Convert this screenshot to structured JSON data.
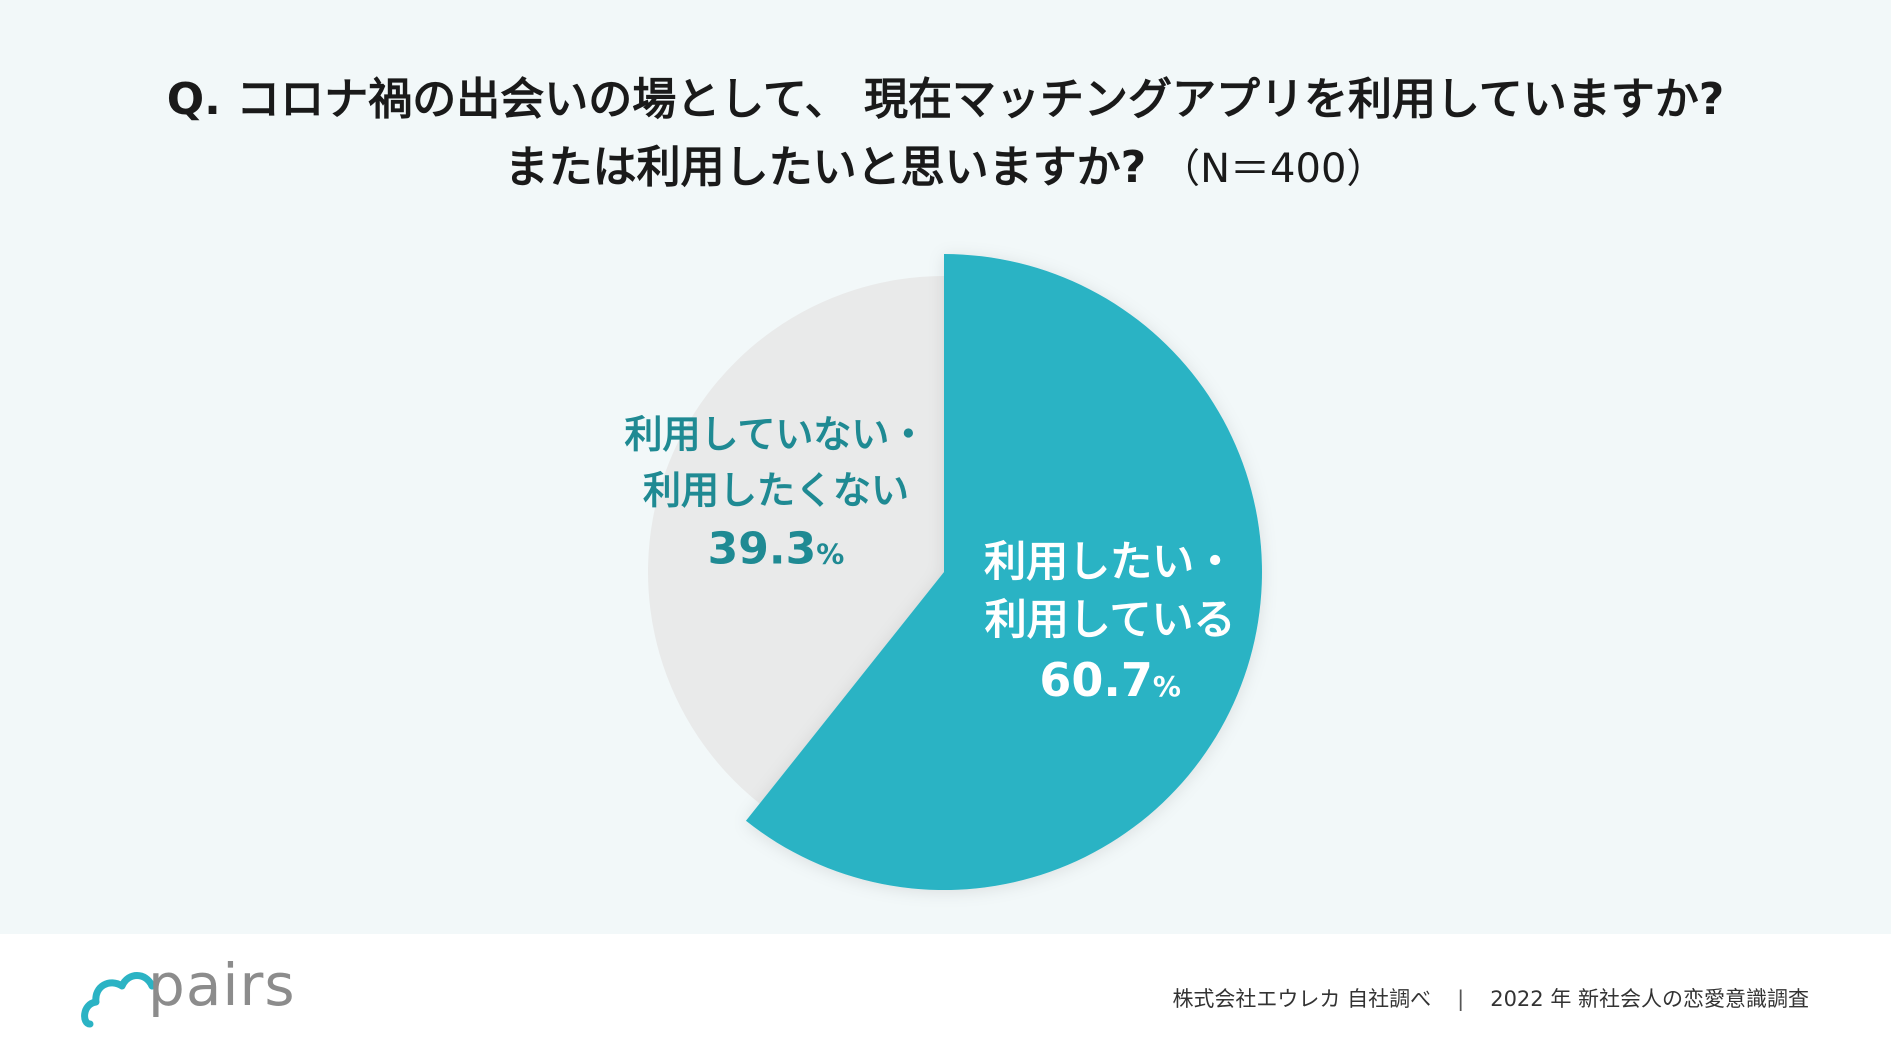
{
  "question": {
    "line1": "Q. コロナ禍の出会いの場として、 現在マッチングアプリを利用していますか?",
    "line2": "または利用したいと思いますか?",
    "sample_note": "（N＝400）"
  },
  "chart_data": {
    "type": "pie",
    "start_angle_deg": 0,
    "direction": "clockwise",
    "slices": [
      {
        "label_lines": [
          "利用したい・",
          "利用している"
        ],
        "value": 60.7,
        "value_text": "60.7",
        "unit": "%",
        "color": "#2bb3c4",
        "label_color": "#ffffff",
        "exploded": true
      },
      {
        "label_lines": [
          "利用していない・",
          "利用したくない"
        ],
        "value": 39.3,
        "value_text": "39.3",
        "unit": "%",
        "color": "#e9eaea",
        "label_color": "#1f8a93",
        "exploded": false
      }
    ]
  },
  "footer": {
    "logo_text": "pairs",
    "logo_color": "#2bb3c4",
    "source_company": "株式会社エウレカ 自社調べ",
    "separator": "|",
    "source_survey": "2022 年 新社会人の恋愛意識調査"
  }
}
